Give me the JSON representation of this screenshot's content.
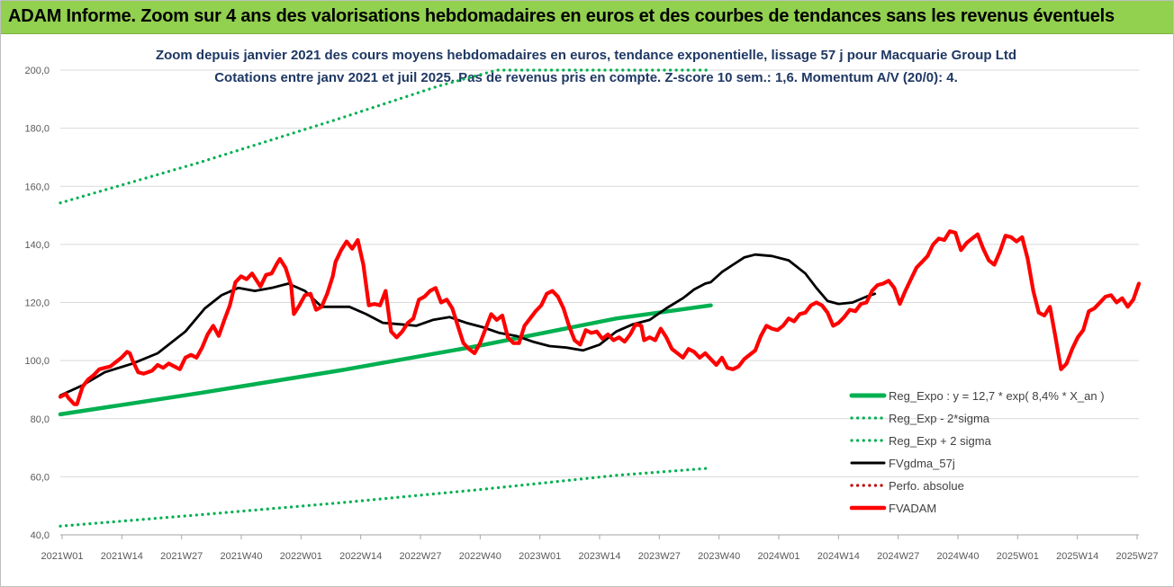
{
  "header": {
    "title": "ADAM Informe. Zoom sur 4 ans des valorisations hebdomadaires en euros et des courbes de tendances sans les revenus éventuels"
  },
  "chart_data": {
    "type": "line",
    "title": "Zoom depuis janvier 2021 des cours moyens hebdomadaires en euros, tendance exponentielle, lissage 57 j pour Macquarie Group Ltd",
    "subtitle": "Cotations entre janv 2021 et juil 2025. Pas de revenus pris en compte. Z-score 10 sem.: 1,6. Momentum A/V (20/0): 4.",
    "ylim": [
      40,
      200
    ],
    "y_ticks": [
      "40,0",
      "60,0",
      "80,0",
      "100,0",
      "120,0",
      "140,0",
      "160,0",
      "180,0",
      "200,0"
    ],
    "x_ticks": [
      "2021W01",
      "2021W14",
      "2021W27",
      "2021W40",
      "2022W01",
      "2022W14",
      "2022W27",
      "2022W40",
      "2023W01",
      "2023W14",
      "2023W27",
      "2023W40",
      "2024W01",
      "2024W14",
      "2024W27",
      "2024W40",
      "2025W01",
      "2025W14",
      "2025W27"
    ],
    "x_index_range": [
      0,
      234
    ],
    "grid": "horizontal",
    "legend_position": "bottom-right",
    "series": [
      {
        "name": "Reg_Expo : y = 12,7 * exp( 8,4% *  X_an )",
        "color": "#00b050",
        "style": "solid",
        "points": [
          [
            0,
            81.5
          ],
          [
            50,
            88.8
          ],
          [
            100,
            96.5
          ],
          [
            150,
            105.0
          ],
          [
            200,
            114.5
          ],
          [
            234,
            119.0
          ]
        ]
      },
      {
        "name": "Reg_Exp - 2*sigma",
        "color": "#00b050",
        "style": "dotted",
        "points": [
          [
            0,
            43.0
          ],
          [
            50,
            46.9
          ],
          [
            100,
            51.0
          ],
          [
            150,
            55.5
          ],
          [
            200,
            60.5
          ],
          [
            234,
            63.0
          ]
        ]
      },
      {
        "name": "Reg_Exp + 2 sigma",
        "color": "#00b050",
        "style": "dotted",
        "points": [
          [
            0,
            154.3
          ],
          [
            50,
            168.2
          ],
          [
            100,
            183.2
          ],
          [
            136,
            194.5
          ],
          [
            157,
            200.0
          ],
          [
            234,
            200.0
          ]
        ]
      },
      {
        "name": "FVgdma_57j",
        "color": "#000000",
        "style": "solid",
        "points": [
          [
            0,
            88.0
          ],
          [
            8,
            91.5
          ],
          [
            16,
            96.0
          ],
          [
            26,
            99.0
          ],
          [
            35,
            102.5
          ],
          [
            45,
            110.0
          ],
          [
            52,
            118.0
          ],
          [
            58,
            122.5
          ],
          [
            64,
            125.0
          ],
          [
            70,
            124.0
          ],
          [
            76,
            125.0
          ],
          [
            82,
            126.5
          ],
          [
            88,
            124.0
          ],
          [
            94,
            118.5
          ],
          [
            104,
            118.5
          ],
          [
            110,
            116.0
          ],
          [
            116,
            113.0
          ],
          [
            122,
            112.5
          ],
          [
            128,
            112.0
          ],
          [
            134,
            114.0
          ],
          [
            140,
            115.0
          ],
          [
            146,
            113.0
          ],
          [
            152,
            111.5
          ],
          [
            158,
            109.5
          ],
          [
            164,
            108.5
          ],
          [
            170,
            106.5
          ],
          [
            176,
            105.0
          ],
          [
            182,
            104.5
          ],
          [
            188,
            103.5
          ],
          [
            194,
            105.5
          ],
          [
            200,
            110.0
          ],
          [
            206,
            112.5
          ],
          [
            212,
            114.0
          ],
          [
            218,
            118.0
          ],
          [
            224,
            121.5
          ],
          [
            228,
            124.5
          ],
          [
            232,
            126.5
          ],
          [
            234,
            127.0
          ],
          [
            238,
            130.5
          ],
          [
            242,
            133.0
          ],
          [
            246,
            135.5
          ],
          [
            250,
            136.5
          ],
          [
            256,
            136.0
          ],
          [
            262,
            134.5
          ],
          [
            268,
            130.0
          ],
          [
            272,
            125.0
          ],
          [
            276,
            120.5
          ],
          [
            280,
            119.5
          ],
          [
            285,
            120.0
          ],
          [
            290,
            122.0
          ],
          [
            293,
            123.0
          ]
        ]
      },
      {
        "name": "Perfo. absolue",
        "color": "#c00000",
        "style": "dotted",
        "points": []
      },
      {
        "name": "FVADAM",
        "color": "#ff0000",
        "style": "solid",
        "points": [
          [
            0,
            87.5
          ],
          [
            2,
            88.5
          ],
          [
            3,
            87.0
          ],
          [
            5,
            85.0
          ],
          [
            6,
            85.0
          ],
          [
            8,
            91.0
          ],
          [
            10,
            93.5
          ],
          [
            12,
            95.0
          ],
          [
            14,
            97.0
          ],
          [
            16,
            97.5
          ],
          [
            18,
            98.0
          ],
          [
            20,
            99.5
          ],
          [
            22,
            101.0
          ],
          [
            24,
            103.0
          ],
          [
            25,
            102.5
          ],
          [
            26,
            100.0
          ],
          [
            28,
            96.0
          ],
          [
            30,
            95.5
          ],
          [
            33,
            96.5
          ],
          [
            35,
            98.5
          ],
          [
            37,
            97.5
          ],
          [
            39,
            99.0
          ],
          [
            41,
            98.0
          ],
          [
            43,
            97.0
          ],
          [
            45,
            101.0
          ],
          [
            47,
            102.0
          ],
          [
            49,
            101.0
          ],
          [
            51,
            104.5
          ],
          [
            53,
            109.0
          ],
          [
            55,
            112.0
          ],
          [
            57,
            108.5
          ],
          [
            59,
            114.0
          ],
          [
            61,
            119.0
          ],
          [
            63,
            127.0
          ],
          [
            65,
            129.0
          ],
          [
            67,
            128.0
          ],
          [
            69,
            130.0
          ],
          [
            71,
            127.0
          ],
          [
            72,
            125.5
          ],
          [
            74,
            129.5
          ],
          [
            76,
            130.0
          ],
          [
            78,
            133.5
          ],
          [
            79,
            135.0
          ],
          [
            81,
            132.0
          ],
          [
            83,
            126.0
          ],
          [
            84,
            116.0
          ],
          [
            86,
            119.0
          ],
          [
            88,
            122.5
          ],
          [
            90,
            123.0
          ],
          [
            92,
            117.5
          ],
          [
            94,
            118.5
          ],
          [
            96,
            123.0
          ],
          [
            98,
            129.0
          ],
          [
            99,
            134.0
          ],
          [
            101,
            138.0
          ],
          [
            103,
            141.0
          ],
          [
            105,
            138.5
          ],
          [
            107,
            141.5
          ],
          [
            109,
            133.0
          ],
          [
            111,
            119.0
          ],
          [
            113,
            119.5
          ],
          [
            115,
            119.0
          ],
          [
            117,
            124.0
          ],
          [
            119,
            110.0
          ],
          [
            121,
            108.0
          ],
          [
            123,
            110.0
          ],
          [
            125,
            113.0
          ],
          [
            127,
            114.5
          ],
          [
            129,
            121.0
          ],
          [
            131,
            122.0
          ],
          [
            133,
            124.0
          ],
          [
            135,
            125.0
          ],
          [
            137,
            120.0
          ],
          [
            139,
            121.0
          ],
          [
            141,
            118.0
          ],
          [
            143,
            112.0
          ],
          [
            145,
            106.0
          ],
          [
            147,
            104.0
          ],
          [
            149,
            102.5
          ],
          [
            151,
            106.0
          ],
          [
            153,
            111.0
          ],
          [
            155,
            116.0
          ],
          [
            157,
            114.0
          ],
          [
            159,
            115.5
          ],
          [
            161,
            108.0
          ],
          [
            163,
            106.0
          ],
          [
            165,
            106.0
          ],
          [
            167,
            112.0
          ],
          [
            169,
            114.5
          ],
          [
            171,
            117.0
          ],
          [
            173,
            119.0
          ],
          [
            175,
            123.0
          ],
          [
            177,
            124.0
          ],
          [
            179,
            122.0
          ],
          [
            181,
            118.0
          ],
          [
            183,
            112.0
          ],
          [
            185,
            107.0
          ],
          [
            187,
            105.5
          ],
          [
            189,
            110.5
          ],
          [
            191,
            109.5
          ],
          [
            193,
            110.0
          ],
          [
            195,
            107.5
          ],
          [
            197,
            109.0
          ],
          [
            199,
            107.0
          ],
          [
            201,
            108.0
          ],
          [
            203,
            106.5
          ],
          [
            205,
            109.0
          ],
          [
            207,
            112.5
          ],
          [
            209,
            112.0
          ],
          [
            210,
            107.0
          ],
          [
            212,
            108.0
          ],
          [
            214,
            107.0
          ],
          [
            216,
            111.0
          ],
          [
            218,
            108.0
          ],
          [
            220,
            104.0
          ],
          [
            222,
            102.5
          ],
          [
            224,
            101.0
          ],
          [
            226,
            104.0
          ],
          [
            228,
            103.0
          ],
          [
            230,
            101.0
          ],
          [
            232,
            102.5
          ],
          [
            234,
            100.5
          ],
          [
            236,
            98.5
          ],
          [
            238,
            101.0
          ],
          [
            240,
            97.5
          ],
          [
            242,
            97.0
          ],
          [
            244,
            98.0
          ],
          [
            246,
            100.5
          ],
          [
            248,
            102.0
          ],
          [
            250,
            103.5
          ],
          [
            252,
            108.5
          ],
          [
            254,
            112.0
          ],
          [
            256,
            111.0
          ],
          [
            258,
            110.5
          ],
          [
            260,
            112.0
          ],
          [
            262,
            114.5
          ],
          [
            264,
            113.5
          ],
          [
            266,
            116.0
          ],
          [
            268,
            116.5
          ],
          [
            270,
            119.0
          ],
          [
            272,
            120.0
          ],
          [
            274,
            119.0
          ],
          [
            276,
            116.5
          ],
          [
            278,
            112.0
          ],
          [
            280,
            113.0
          ],
          [
            282,
            115.0
          ],
          [
            284,
            117.5
          ],
          [
            286,
            117.0
          ],
          [
            288,
            119.5
          ],
          [
            290,
            120.0
          ],
          [
            292,
            124.0
          ],
          [
            294,
            126.0
          ],
          [
            296,
            126.5
          ],
          [
            298,
            127.5
          ],
          [
            300,
            125.0
          ],
          [
            302,
            119.5
          ],
          [
            304,
            124.0
          ],
          [
            306,
            128.0
          ],
          [
            308,
            132.0
          ],
          [
            310,
            134.0
          ],
          [
            312,
            136.0
          ],
          [
            314,
            140.0
          ],
          [
            316,
            142.0
          ],
          [
            318,
            141.5
          ],
          [
            320,
            144.5
          ],
          [
            322,
            144.0
          ],
          [
            324,
            138.0
          ],
          [
            326,
            140.5
          ],
          [
            328,
            142.0
          ],
          [
            330,
            143.5
          ],
          [
            332,
            138.5
          ],
          [
            334,
            134.5
          ],
          [
            336,
            133.0
          ],
          [
            338,
            137.5
          ],
          [
            340,
            143.0
          ],
          [
            342,
            142.5
          ],
          [
            344,
            141.0
          ],
          [
            346,
            142.5
          ],
          [
            348,
            135.0
          ],
          [
            350,
            124.0
          ],
          [
            352,
            116.5
          ],
          [
            354,
            115.5
          ],
          [
            356,
            118.5
          ],
          [
            358,
            108.0
          ],
          [
            360,
            97.0
          ],
          [
            362,
            99.0
          ],
          [
            364,
            104.0
          ],
          [
            366,
            108.0
          ],
          [
            368,
            110.5
          ],
          [
            370,
            117.0
          ],
          [
            372,
            118.0
          ],
          [
            374,
            120.0
          ],
          [
            376,
            122.0
          ],
          [
            378,
            122.5
          ],
          [
            380,
            120.0
          ],
          [
            382,
            121.5
          ],
          [
            384,
            118.5
          ],
          [
            386,
            121.0
          ],
          [
            388,
            126.5
          ]
        ]
      }
    ]
  }
}
